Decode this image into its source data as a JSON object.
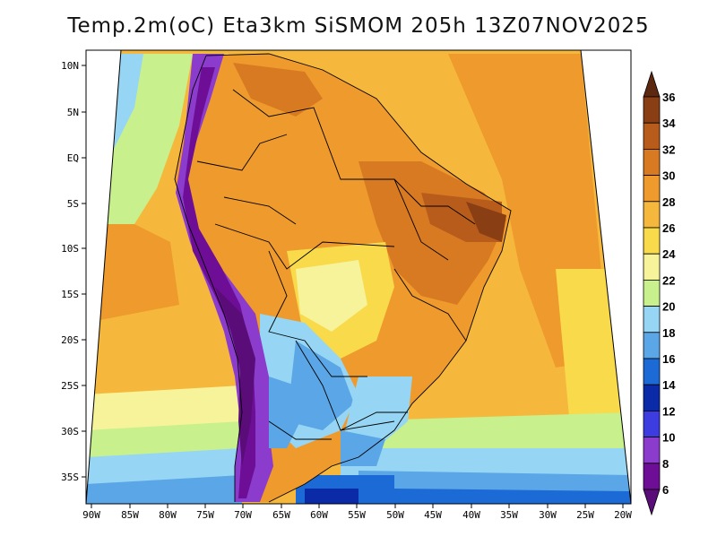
{
  "title": "Temp.2m(oC) Eta3km SiSMOM 205h 13Z07NOV2025",
  "lat_ticks": [
    {
      "label": "10N",
      "value": 10
    },
    {
      "label": "5N",
      "value": 5
    },
    {
      "label": "EQ",
      "value": 0
    },
    {
      "label": "5S",
      "value": -5
    },
    {
      "label": "10S",
      "value": -10
    },
    {
      "label": "15S",
      "value": -15
    },
    {
      "label": "20S",
      "value": -20
    },
    {
      "label": "25S",
      "value": -25
    },
    {
      "label": "30S",
      "value": -30
    },
    {
      "label": "35S",
      "value": -35
    }
  ],
  "lon_ticks": [
    {
      "label": "90W",
      "value": -90
    },
    {
      "label": "85W",
      "value": -85
    },
    {
      "label": "80W",
      "value": -80
    },
    {
      "label": "75W",
      "value": -75
    },
    {
      "label": "70W",
      "value": -70
    },
    {
      "label": "65W",
      "value": -65
    },
    {
      "label": "60W",
      "value": -60
    },
    {
      "label": "55W",
      "value": -55
    },
    {
      "label": "50W",
      "value": -50
    },
    {
      "label": "45W",
      "value": -45
    },
    {
      "label": "40W",
      "value": -40
    },
    {
      "label": "35W",
      "value": -35
    },
    {
      "label": "30W",
      "value": -30
    },
    {
      "label": "25W",
      "value": -25
    },
    {
      "label": "20W",
      "value": -20
    }
  ],
  "colorbar": {
    "levels": [
      "36",
      "34",
      "32",
      "30",
      "28",
      "26",
      "24",
      "22",
      "20",
      "18",
      "16",
      "14",
      "12",
      "10",
      "8",
      "6"
    ],
    "colors": [
      "#5c2810",
      "#8a3e14",
      "#b85c1c",
      "#d87a22",
      "#ee9a2c",
      "#f5b83c",
      "#f8da4a",
      "#f6f39a",
      "#c8f08c",
      "#96d6f4",
      "#5aa6e6",
      "#1c6ad6",
      "#0a2aa8",
      "#3c3ce0",
      "#8c3ccc",
      "#6e0e96",
      "#5a0c78"
    ]
  }
}
